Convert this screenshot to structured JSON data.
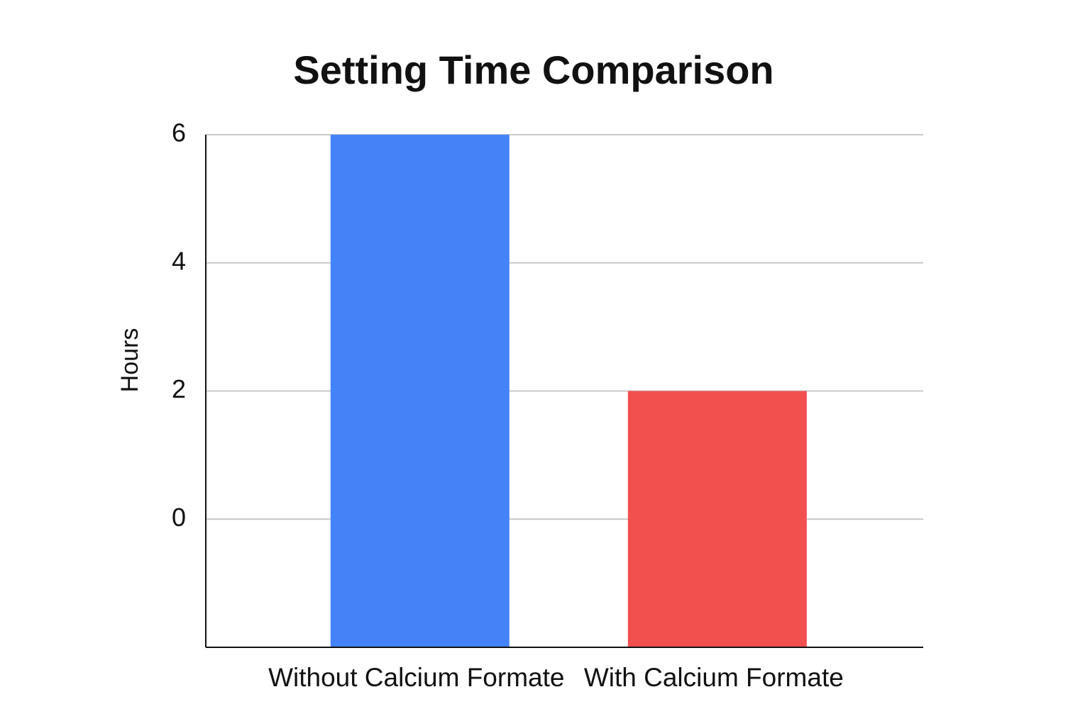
{
  "chart_data": {
    "type": "bar",
    "title": "Setting Time Comparison",
    "y_label": "Hours",
    "categories": [
      "Without Calcium Formate",
      "With Calcium Formate"
    ],
    "values": [
      6,
      2
    ],
    "colors": [
      "#4383f7",
      "#f24f4f"
    ],
    "ylim": [
      -2,
      6
    ],
    "yticks": [
      0,
      2,
      4,
      6
    ],
    "grid": true
  }
}
